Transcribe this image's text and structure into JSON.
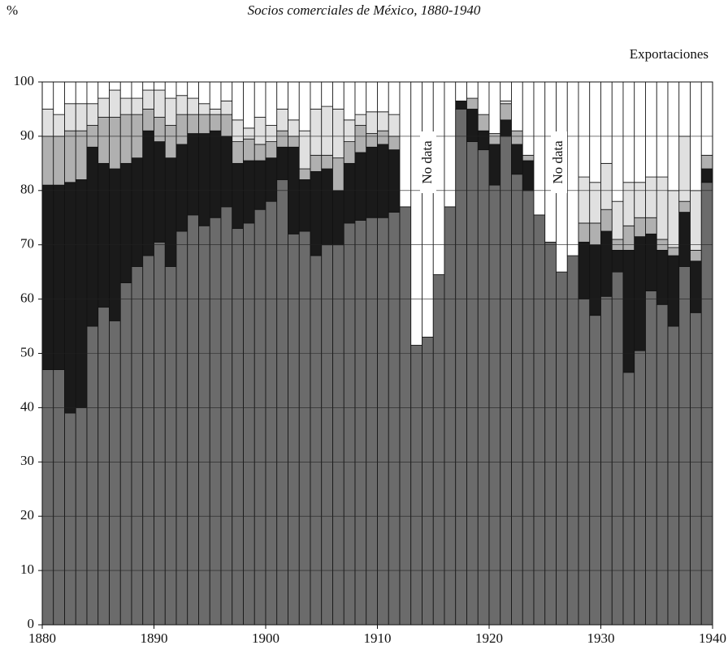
{
  "chart_data": {
    "type": "stacked-bar",
    "y_unit": "%",
    "title": "Socios comerciales de México, 1880-1940",
    "subtitle": "Exportaciones",
    "annotations": [
      "No data",
      "No data"
    ],
    "x": [
      1880,
      1881,
      1882,
      1883,
      1884,
      1885,
      1886,
      1887,
      1888,
      1889,
      1890,
      1891,
      1892,
      1893,
      1894,
      1895,
      1896,
      1897,
      1898,
      1899,
      1900,
      1901,
      1902,
      1903,
      1904,
      1905,
      1906,
      1907,
      1908,
      1909,
      1910,
      1911,
      1912,
      1913,
      1914,
      1915,
      1916,
      1917,
      1918,
      1919,
      1920,
      1921,
      1922,
      1923,
      1924,
      1925,
      1926,
      1927,
      1928,
      1929,
      1930,
      1931,
      1932,
      1933,
      1934,
      1935,
      1936,
      1937,
      1938,
      1939
    ],
    "series": [
      {
        "color": "#6b6b6b",
        "values": [
          47,
          47,
          39,
          40,
          55,
          58.5,
          56,
          63,
          66,
          68,
          70.5,
          66,
          72.5,
          75.5,
          73.5,
          75,
          77,
          73,
          74,
          76.5,
          78,
          82,
          72,
          72.5,
          68,
          70,
          70,
          74,
          74.5,
          75,
          75,
          76,
          77,
          51.5,
          53,
          64.5,
          77,
          95,
          89,
          87.5,
          81,
          90,
          83,
          80,
          75.5,
          70.5,
          65,
          68,
          60,
          57,
          60.5,
          65,
          46.5,
          50.5,
          61.5,
          59,
          55,
          66,
          57.5,
          81.5
        ]
      },
      {
        "color": "#1a1a1a",
        "values": [
          34,
          34,
          42.5,
          42,
          33,
          26.5,
          28,
          22,
          20,
          23,
          18.5,
          20,
          16,
          15,
          17,
          16,
          13,
          12,
          11.5,
          9,
          8,
          6,
          16,
          9.5,
          15.5,
          14,
          10,
          11,
          12.5,
          13,
          13.5,
          11.5,
          0,
          0,
          0,
          0,
          0,
          1.5,
          6,
          3.5,
          7.5,
          3,
          5.5,
          5.5,
          0,
          0,
          0,
          0,
          10.5,
          13,
          12,
          4,
          22.5,
          21,
          10.5,
          10,
          13,
          10,
          9.5,
          2.5
        ]
      },
      {
        "color": "#b0b0b0",
        "values": [
          9,
          9,
          9.5,
          9,
          4,
          8.5,
          9.5,
          9,
          8,
          4,
          4.5,
          6,
          5.5,
          3.5,
          3.5,
          3,
          4,
          4,
          4,
          3,
          3,
          3,
          2,
          2,
          3,
          2.5,
          6,
          4,
          5,
          2.5,
          2.5,
          2.5,
          0,
          0,
          0,
          0,
          0,
          0,
          2,
          3,
          2,
          3,
          2.5,
          1,
          0,
          0,
          0,
          0,
          3.5,
          4,
          4,
          2,
          4.5,
          3.5,
          3,
          2,
          1.5,
          2,
          2,
          2.5
        ]
      },
      {
        "color": "#e0e0e0",
        "values": [
          5,
          4,
          5,
          5,
          4,
          3.5,
          5,
          3,
          3,
          3.5,
          5,
          5,
          3.5,
          3,
          2,
          1,
          2.5,
          4,
          2,
          5,
          3,
          4,
          3,
          7,
          8.5,
          9,
          9,
          4,
          2,
          4,
          3.5,
          4,
          0,
          0,
          0,
          0,
          0,
          0,
          0,
          0,
          0,
          0.5,
          0,
          0,
          0,
          0,
          0,
          0,
          8.5,
          7.5,
          8.5,
          7,
          8,
          6.5,
          7.5,
          11.5,
          10.5,
          12,
          11,
          0
        ]
      },
      {
        "color": "#ffffff",
        "values": [
          5,
          6,
          4,
          4,
          4,
          3,
          1.5,
          3,
          3,
          1.5,
          1.5,
          3,
          2.5,
          3,
          4,
          5,
          3.5,
          7,
          8.5,
          6.5,
          8,
          5,
          7,
          9,
          5,
          4.5,
          5,
          7,
          6,
          5.5,
          5.5,
          6,
          23,
          48.5,
          47,
          35.5,
          23,
          3.5,
          3,
          6,
          9.5,
          3.5,
          9,
          13.5,
          24.5,
          29.5,
          35,
          32,
          17.5,
          18.5,
          15,
          22,
          18.5,
          18.5,
          17.5,
          17.5,
          20,
          10,
          20,
          13.5
        ]
      }
    ],
    "xlim": [
      1880,
      1940
    ],
    "xticks": [
      1880,
      1890,
      1900,
      1910,
      1920,
      1930,
      1940
    ],
    "ylim": [
      0,
      100
    ],
    "yticks": [
      0,
      10,
      20,
      30,
      40,
      50,
      60,
      70,
      80,
      90,
      100
    ],
    "grid": true
  }
}
